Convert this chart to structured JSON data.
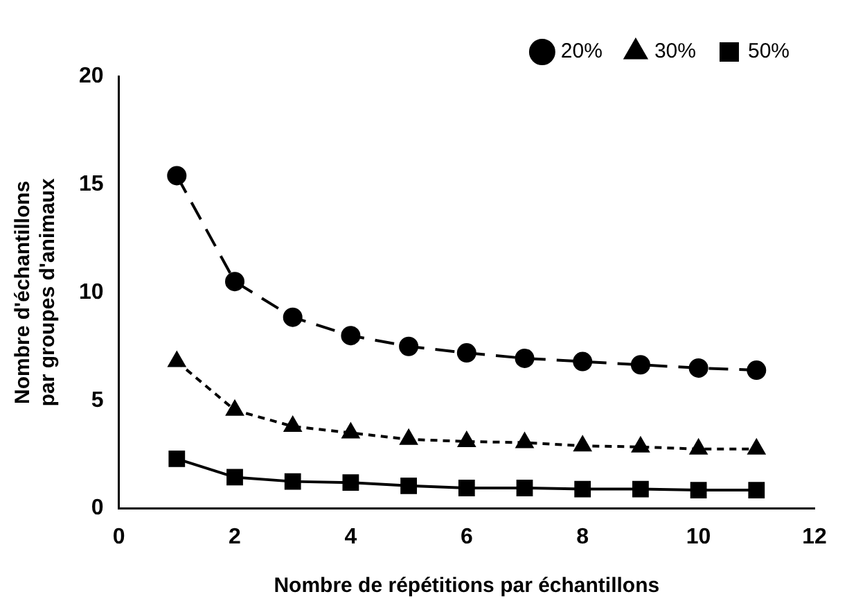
{
  "chart_data": {
    "type": "line",
    "xlabel": "Nombre de répétitions par échantillons",
    "ylabel": "Nombre d'échantillons\npar groupes d'animaux",
    "x": [
      1,
      2,
      3,
      4,
      5,
      6,
      7,
      8,
      9,
      10,
      11
    ],
    "series": [
      {
        "name": "20%",
        "color": "#000000",
        "marker": "circle",
        "line_style": "dashed",
        "values": [
          15.4,
          10.5,
          8.85,
          8.0,
          7.5,
          7.2,
          6.95,
          6.8,
          6.65,
          6.5,
          6.4
        ]
      },
      {
        "name": "30%",
        "color": "#000000",
        "marker": "triangle",
        "line_style": "dotted",
        "values": [
          6.8,
          4.55,
          3.8,
          3.5,
          3.2,
          3.1,
          3.05,
          2.9,
          2.85,
          2.75,
          2.75
        ]
      },
      {
        "name": "50%",
        "color": "#000000",
        "marker": "square",
        "line_style": "solid",
        "values": [
          2.3,
          1.45,
          1.25,
          1.2,
          1.05,
          0.95,
          0.95,
          0.9,
          0.9,
          0.85,
          0.85
        ]
      }
    ],
    "xlim": [
      0,
      12
    ],
    "xticks": [
      0,
      2,
      4,
      6,
      8,
      10,
      12
    ],
    "ylim": [
      0,
      20
    ],
    "yticks": [
      0,
      5,
      10,
      15,
      20
    ],
    "grid": false,
    "legend": "top right"
  }
}
